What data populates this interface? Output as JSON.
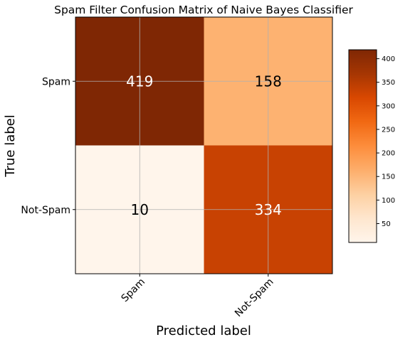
{
  "chart_data": {
    "type": "heatmap",
    "title": "Spam Filter Confusion Matrix of Naive Bayes Classifier",
    "xlabel": "Predicted label",
    "ylabel": "True label",
    "x_categories": [
      "Spam",
      "Not-Spam"
    ],
    "y_categories": [
      "Spam",
      "Not-Spam"
    ],
    "values": [
      [
        419,
        158
      ],
      [
        10,
        334
      ]
    ],
    "value_labels": [
      [
        "419",
        "158"
      ],
      [
        "10",
        "334"
      ]
    ],
    "colormap": "Oranges",
    "color_range": [
      10,
      419
    ],
    "grid": true,
    "colorbar": {
      "ticks": [
        50,
        100,
        150,
        200,
        250,
        300,
        350,
        400
      ],
      "tick_labels": [
        "50",
        "100",
        "150",
        "200",
        "250",
        "300",
        "350",
        "400"
      ]
    },
    "x_tick_rotation_deg": 45
  }
}
